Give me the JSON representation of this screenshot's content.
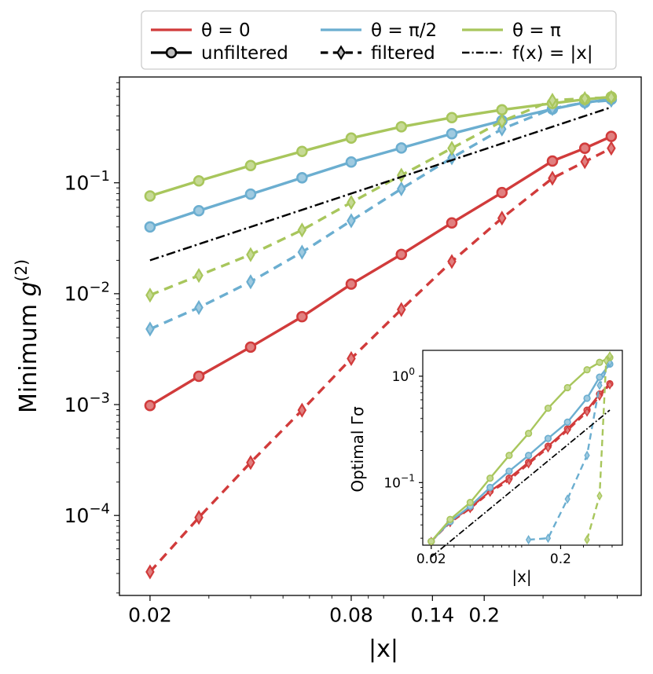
{
  "chart_data": [
    {
      "id": "main",
      "type": "line",
      "scale": {
        "x": "log",
        "y": "log"
      },
      "xlabel": "|x|",
      "ylabel": "Minimum g(2)",
      "xlim": [
        0.0162,
        0.59
      ],
      "ylim": [
        1.9e-05,
        0.9
      ],
      "xticks": [
        {
          "value": 0.02,
          "label": "0.02"
        },
        {
          "value": 0.08,
          "label": "0.08"
        },
        {
          "value": 0.14,
          "label": "0.14"
        },
        {
          "value": 0.2,
          "label": "0.2"
        }
      ],
      "yticks": [
        {
          "value": 0.0001,
          "base": "10",
          "exp": "−4"
        },
        {
          "value": 0.001,
          "base": "10",
          "exp": "−3"
        },
        {
          "value": 0.01,
          "base": "10",
          "exp": "−2"
        },
        {
          "value": 0.1,
          "base": "10",
          "exp": "−1"
        }
      ],
      "series": [
        {
          "name": "θ = 0 unfiltered",
          "color": "#d13b3b",
          "style": "solid",
          "marker": "circle",
          "x": [
            0.02,
            0.028,
            0.04,
            0.057,
            0.08,
            0.113,
            0.16,
            0.226,
            0.32,
            0.4,
            0.48
          ],
          "y": [
            0.00098,
            0.0018,
            0.0033,
            0.0062,
            0.0122,
            0.0226,
            0.0435,
            0.0816,
            0.157,
            0.205,
            0.262
          ]
        },
        {
          "name": "θ = 0 filtered",
          "color": "#d13b3b",
          "style": "dashed",
          "marker": "diamond",
          "x": [
            0.02,
            0.028,
            0.04,
            0.057,
            0.08,
            0.113,
            0.16,
            0.226,
            0.32,
            0.4,
            0.48
          ],
          "y": [
            3.1e-05,
            9.6e-05,
            0.0003,
            0.00089,
            0.0026,
            0.0072,
            0.0195,
            0.048,
            0.11,
            0.155,
            0.205
          ]
        },
        {
          "name": "θ = π/2 unfiltered",
          "color": "#6baed0",
          "style": "solid",
          "marker": "circle",
          "x": [
            0.02,
            0.028,
            0.04,
            0.057,
            0.08,
            0.113,
            0.16,
            0.226,
            0.32,
            0.4,
            0.48
          ],
          "y": [
            0.04,
            0.056,
            0.079,
            0.111,
            0.154,
            0.206,
            0.277,
            0.363,
            0.462,
            0.53,
            0.565
          ]
        },
        {
          "name": "θ = π/2 filtered",
          "color": "#6baed0",
          "style": "dashed",
          "marker": "diamond",
          "x": [
            0.02,
            0.028,
            0.04,
            0.057,
            0.08,
            0.113,
            0.16,
            0.226,
            0.32,
            0.4,
            0.48
          ],
          "y": [
            0.0048,
            0.0075,
            0.0128,
            0.0237,
            0.0455,
            0.0882,
            0.168,
            0.305,
            0.467,
            0.53,
            0.555
          ]
        },
        {
          "name": "θ = π unfiltered",
          "color": "#a8c65c",
          "style": "solid",
          "marker": "circle",
          "x": [
            0.02,
            0.028,
            0.04,
            0.057,
            0.08,
            0.113,
            0.16,
            0.226,
            0.32,
            0.4,
            0.48
          ],
          "y": [
            0.076,
            0.104,
            0.143,
            0.192,
            0.253,
            0.32,
            0.387,
            0.455,
            0.52,
            0.565,
            0.595
          ]
        },
        {
          "name": "θ = π filtered",
          "color": "#a8c65c",
          "style": "dashed",
          "marker": "diamond",
          "x": [
            0.02,
            0.028,
            0.04,
            0.057,
            0.08,
            0.113,
            0.16,
            0.226,
            0.32,
            0.4,
            0.48
          ],
          "y": [
            0.0097,
            0.0146,
            0.0225,
            0.0375,
            0.0665,
            0.117,
            0.205,
            0.358,
            0.555,
            0.575,
            0.59
          ]
        },
        {
          "name": "f(x) = |x|",
          "color": "#000000",
          "style": "dashdot",
          "marker": "none",
          "x": [
            0.02,
            0.48
          ],
          "y": [
            0.02,
            0.48
          ]
        }
      ],
      "legend": {
        "position": "top",
        "entries": [
          {
            "label": "θ = 0",
            "color": "#d13b3b",
            "style": "solid",
            "marker": "none"
          },
          {
            "label": "θ = π/2",
            "color": "#6baed0",
            "style": "solid",
            "marker": "none"
          },
          {
            "label": "θ = π",
            "color": "#a8c65c",
            "style": "solid",
            "marker": "none"
          },
          {
            "label": "unfiltered",
            "color": "#000000",
            "style": "solid",
            "marker": "circle"
          },
          {
            "label": "filtered",
            "color": "#000000",
            "style": "dashed",
            "marker": "diamond"
          },
          {
            "label": "f(x) = |x|",
            "color": "#000000",
            "style": "dashdot",
            "marker": "none"
          }
        ]
      }
    },
    {
      "id": "inset",
      "type": "line",
      "scale": {
        "x": "log",
        "y": "log"
      },
      "xlabel": "|x|",
      "ylabel": "Optimal Γσ",
      "xlim": [
        0.0172,
        0.6
      ],
      "ylim": [
        0.0258,
        1.75
      ],
      "xticks": [
        {
          "value": 0.02,
          "label": "0.02"
        },
        {
          "value": 0.2,
          "label": "0.2"
        }
      ],
      "yticks": [
        {
          "value": 0.1,
          "base": "10",
          "exp": "−1"
        },
        {
          "value": 1,
          "base": "10",
          "exp": "0"
        }
      ],
      "series": [
        {
          "name": "θ = 0 unfiltered",
          "color": "#d13b3b",
          "style": "solid",
          "marker": "circle",
          "x": [
            0.02,
            0.028,
            0.04,
            0.057,
            0.08,
            0.113,
            0.16,
            0.226,
            0.32,
            0.4,
            0.48
          ],
          "y": [
            0.028,
            0.043,
            0.058,
            0.083,
            0.11,
            0.155,
            0.22,
            0.32,
            0.48,
            0.68,
            0.85
          ]
        },
        {
          "name": "θ = 0 filtered",
          "color": "#d13b3b",
          "style": "dashed",
          "marker": "diamond",
          "x": [
            0.02,
            0.028,
            0.04,
            0.057,
            0.08,
            0.113,
            0.16,
            0.226,
            0.32,
            0.4,
            0.48
          ],
          "y": [
            0.028,
            0.042,
            0.057,
            0.081,
            0.105,
            0.15,
            0.212,
            0.31,
            0.46,
            0.65,
            0.83
          ]
        },
        {
          "name": "θ = π/2 unfiltered",
          "color": "#6baed0",
          "style": "solid",
          "marker": "circle",
          "x": [
            0.02,
            0.028,
            0.04,
            0.057,
            0.08,
            0.113,
            0.16,
            0.226,
            0.32,
            0.4,
            0.48
          ],
          "y": [
            0.028,
            0.043,
            0.06,
            0.09,
            0.128,
            0.18,
            0.26,
            0.37,
            0.62,
            0.98,
            1.3
          ]
        },
        {
          "name": "θ = π/2 filtered",
          "color": "#6baed0",
          "style": "dashed",
          "marker": "diamond",
          "x": [
            0.113,
            0.16,
            0.226,
            0.32,
            0.4,
            0.48
          ],
          "y": [
            0.029,
            0.03,
            0.07,
            0.18,
            0.82,
            1.35
          ]
        },
        {
          "name": "θ = π unfiltered",
          "color": "#a8c65c",
          "style": "solid",
          "marker": "circle",
          "x": [
            0.02,
            0.028,
            0.04,
            0.057,
            0.08,
            0.113,
            0.16,
            0.226,
            0.32,
            0.4,
            0.48
          ],
          "y": [
            0.028,
            0.045,
            0.065,
            0.11,
            0.18,
            0.29,
            0.5,
            0.78,
            1.15,
            1.35,
            1.5
          ]
        },
        {
          "name": "θ = π filtered",
          "color": "#a8c65c",
          "style": "dashed",
          "marker": "diamond",
          "x": [
            0.32,
            0.4,
            0.45,
            0.48
          ],
          "y": [
            0.029,
            0.075,
            1.4,
            1.55
          ]
        },
        {
          "name": "f(x) = |x|",
          "color": "#000000",
          "style": "dashdot",
          "marker": "none",
          "x": [
            0.02,
            0.48
          ],
          "y": [
            0.02,
            0.48
          ]
        }
      ]
    }
  ]
}
